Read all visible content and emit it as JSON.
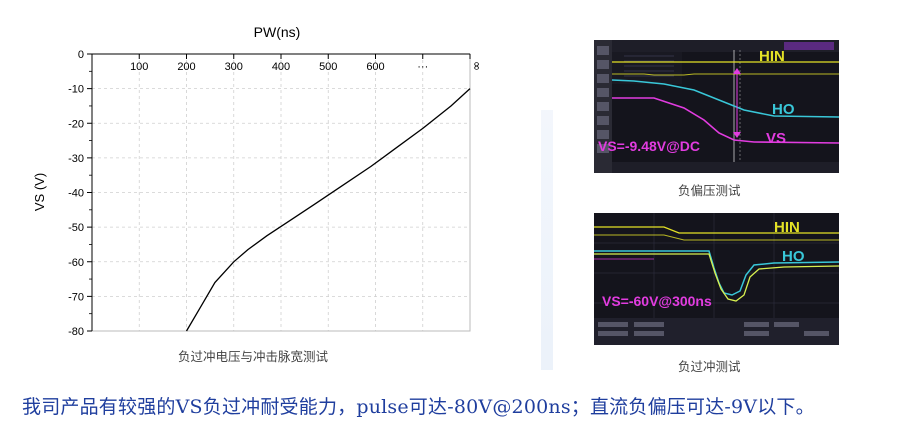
{
  "chart_data": {
    "type": "line",
    "title": "PW(ns)",
    "ylabel": "VS (V)",
    "xlabel": "",
    "x_tick_labels": [
      "100",
      "200",
      "300",
      "400",
      "500",
      "600",
      "···",
      "∞"
    ],
    "y_ticks": [
      0,
      -10,
      -20,
      -30,
      -40,
      -50,
      -60,
      -70,
      -80
    ],
    "y_tick_labels": [
      "0",
      "-10",
      "-20",
      "-30",
      "-40",
      "-50",
      "-60",
      "-70",
      "-80"
    ],
    "ylim": [
      -80,
      0
    ],
    "xlim": [
      0,
      800
    ],
    "grid": true,
    "series": [
      {
        "values_x": [
          200,
          230,
          260,
          300,
          330,
          370,
          420,
          470,
          530,
          590,
          640,
          700,
          760,
          800
        ],
        "values_y": [
          -80,
          -73,
          -66,
          -60,
          -56.5,
          -52.5,
          -48,
          -43.5,
          -38,
          -32.5,
          -27.5,
          -21.5,
          -15,
          -10
        ],
        "color": "#000000"
      }
    ]
  },
  "captions": {
    "main": "负过冲电压与冲击脉宽测试",
    "scope_top": "负偏压测试",
    "scope_bottom": "负过冲测试"
  },
  "scope_top": {
    "hin": "HIN",
    "ho": "HO",
    "vs": "VS",
    "measure": "VS=-9.48V@DC"
  },
  "scope_bottom": {
    "hin": "HIN",
    "ho": "HO",
    "measure": "VS=-60V@300ns"
  },
  "footer": "我司产品有较强的VS负过冲耐受能力，pulse可达-80V@200ns；直流负偏压可达-9V以下。"
}
